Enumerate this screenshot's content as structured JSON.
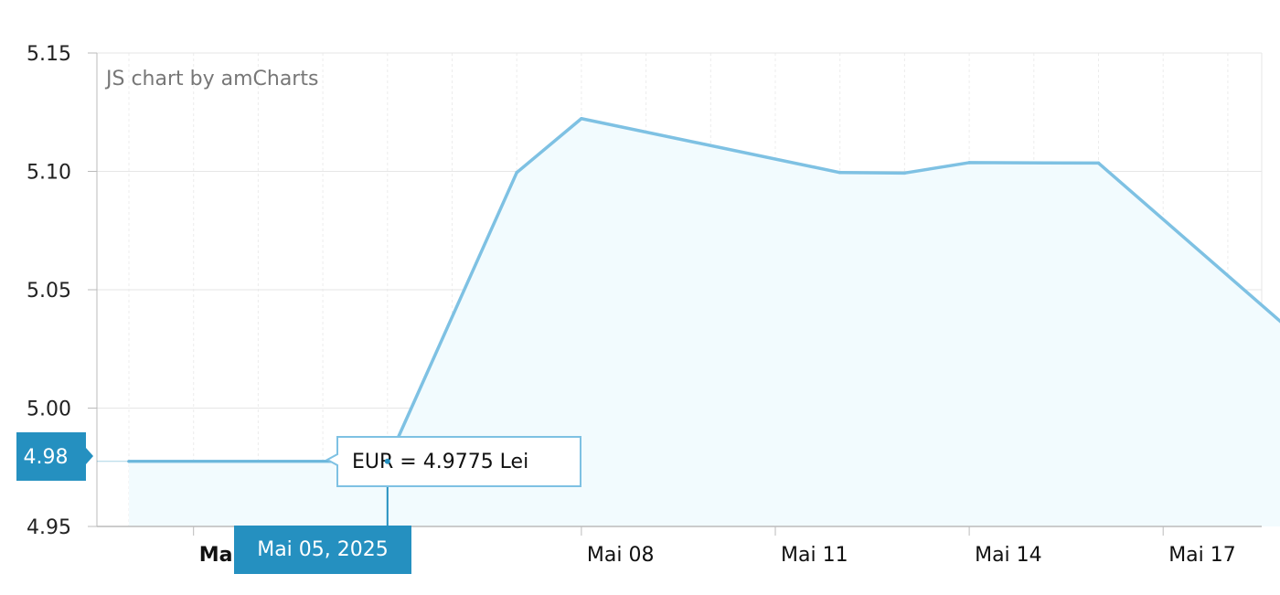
{
  "chart_data": {
    "type": "area",
    "credit": "JS chart by amCharts",
    "x_start": "2025-05-01",
    "x": [
      "2025-05-01",
      "2025-05-05",
      "2025-05-07",
      "2025-05-08",
      "2025-05-12",
      "2025-05-13",
      "2025-05-14",
      "2025-05-16",
      "2025-05-19"
    ],
    "values": [
      4.9775,
      4.9775,
      5.0995,
      5.1223,
      5.0995,
      5.0993,
      5.1037,
      5.1035,
      5.0322
    ],
    "x_labels": [
      {
        "text": "Mai",
        "bold": true
      },
      {
        "text": "Mai 08",
        "bold": false
      },
      {
        "text": "Mai 11",
        "bold": false
      },
      {
        "text": "Mai 14",
        "bold": false
      },
      {
        "text": "Mai 17",
        "bold": false
      }
    ],
    "y_ticks": [
      "5.15",
      "5.10",
      "5.05",
      "5.00",
      "4.95"
    ],
    "ylim": [
      4.95,
      5.15
    ],
    "grid": true,
    "line_color": "#7ec1e3",
    "fill_color": "#f2fbfe",
    "cursor": {
      "date": "2025-05-05",
      "date_label": "Mai 05, 2025",
      "y_value": 4.9775,
      "y_label": "4.98",
      "tooltip": "EUR = 4.9775 Lei",
      "badge_color": "#2590c0"
    }
  }
}
